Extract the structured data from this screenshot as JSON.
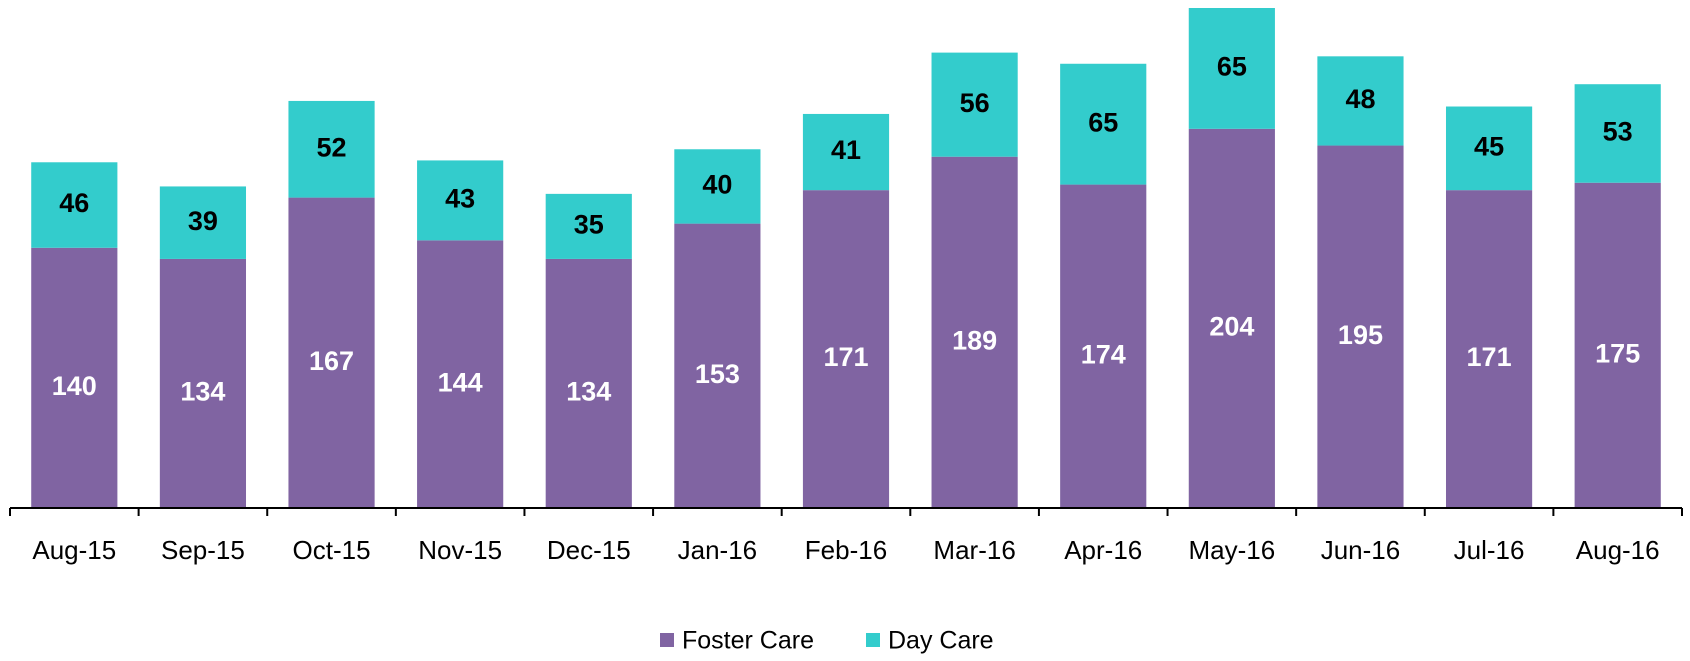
{
  "chart_data": {
    "type": "stacked_bar",
    "categories": [
      "Aug-15",
      "Sep-15",
      "Oct-15",
      "Nov-15",
      "Dec-15",
      "Jan-16",
      "Feb-16",
      "Mar-16",
      "Apr-16",
      "May-16",
      "Jun-16",
      "Jul-16",
      "Aug-16"
    ],
    "series": [
      {
        "name": "Foster Care",
        "color": "#8064a2",
        "label_color": "#ffffff",
        "values": [
          140,
          134,
          167,
          144,
          134,
          153,
          171,
          189,
          174,
          204,
          195,
          171,
          175
        ]
      },
      {
        "name": "Day Care",
        "color": "#33cccc",
        "label_color": "#000000",
        "values": [
          46,
          39,
          52,
          43,
          35,
          40,
          41,
          56,
          65,
          65,
          48,
          45,
          53
        ]
      }
    ],
    "legend": "bottom"
  }
}
